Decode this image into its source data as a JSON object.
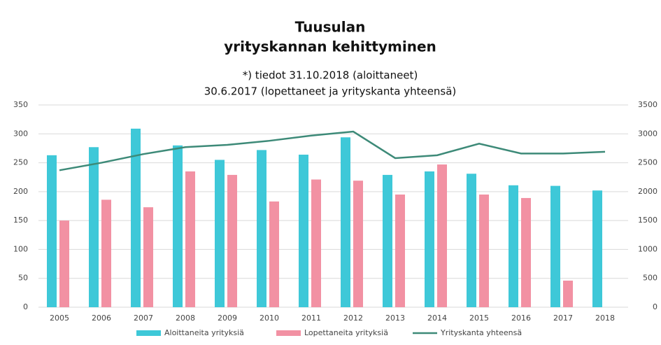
{
  "chart_data": {
    "type": "bar",
    "title": [
      "Tuusulan",
      "yrityskannan kehittyminen"
    ],
    "subtitle": [
      "*) tiedot 31.10.2018 (aloittaneet)",
      "30.6.2017 (lopettaneet ja yrityskanta yhteensä)"
    ],
    "categories": [
      "2005",
      "2006",
      "2007",
      "2008",
      "2009",
      "2010",
      "2011",
      "2012",
      "2013",
      "2014",
      "2015",
      "2016",
      "2017",
      "2018"
    ],
    "series": [
      {
        "name": "Aloittaneita yrityksiä",
        "color": "#3ec8d8",
        "type": "bar",
        "values": [
          263,
          277,
          309,
          280,
          255,
          272,
          264,
          294,
          229,
          235,
          231,
          211,
          210,
          202
        ]
      },
      {
        "name": "Lopettaneita yrityksiä",
        "color": "#f291a3",
        "type": "bar",
        "values": [
          150,
          186,
          173,
          235,
          229,
          183,
          221,
          219,
          195,
          247,
          195,
          189,
          46,
          null
        ]
      },
      {
        "name": "Yrityskanta yhteensä",
        "color": "#3d8a78",
        "type": "line",
        "axis": "y2",
        "values": [
          2370,
          2500,
          2650,
          2770,
          2810,
          2880,
          2970,
          3040,
          2580,
          2630,
          2830,
          2660,
          2660,
          2690
        ]
      }
    ],
    "ylim": [
      0,
      350
    ],
    "yticks": [
      0,
      50,
      100,
      150,
      200,
      250,
      300,
      350
    ],
    "y2lim": [
      0,
      3500
    ],
    "y2ticks": [
      0,
      500,
      1000,
      1500,
      2000,
      2500,
      3000,
      3500
    ],
    "grid": true,
    "legend": "bottom"
  }
}
